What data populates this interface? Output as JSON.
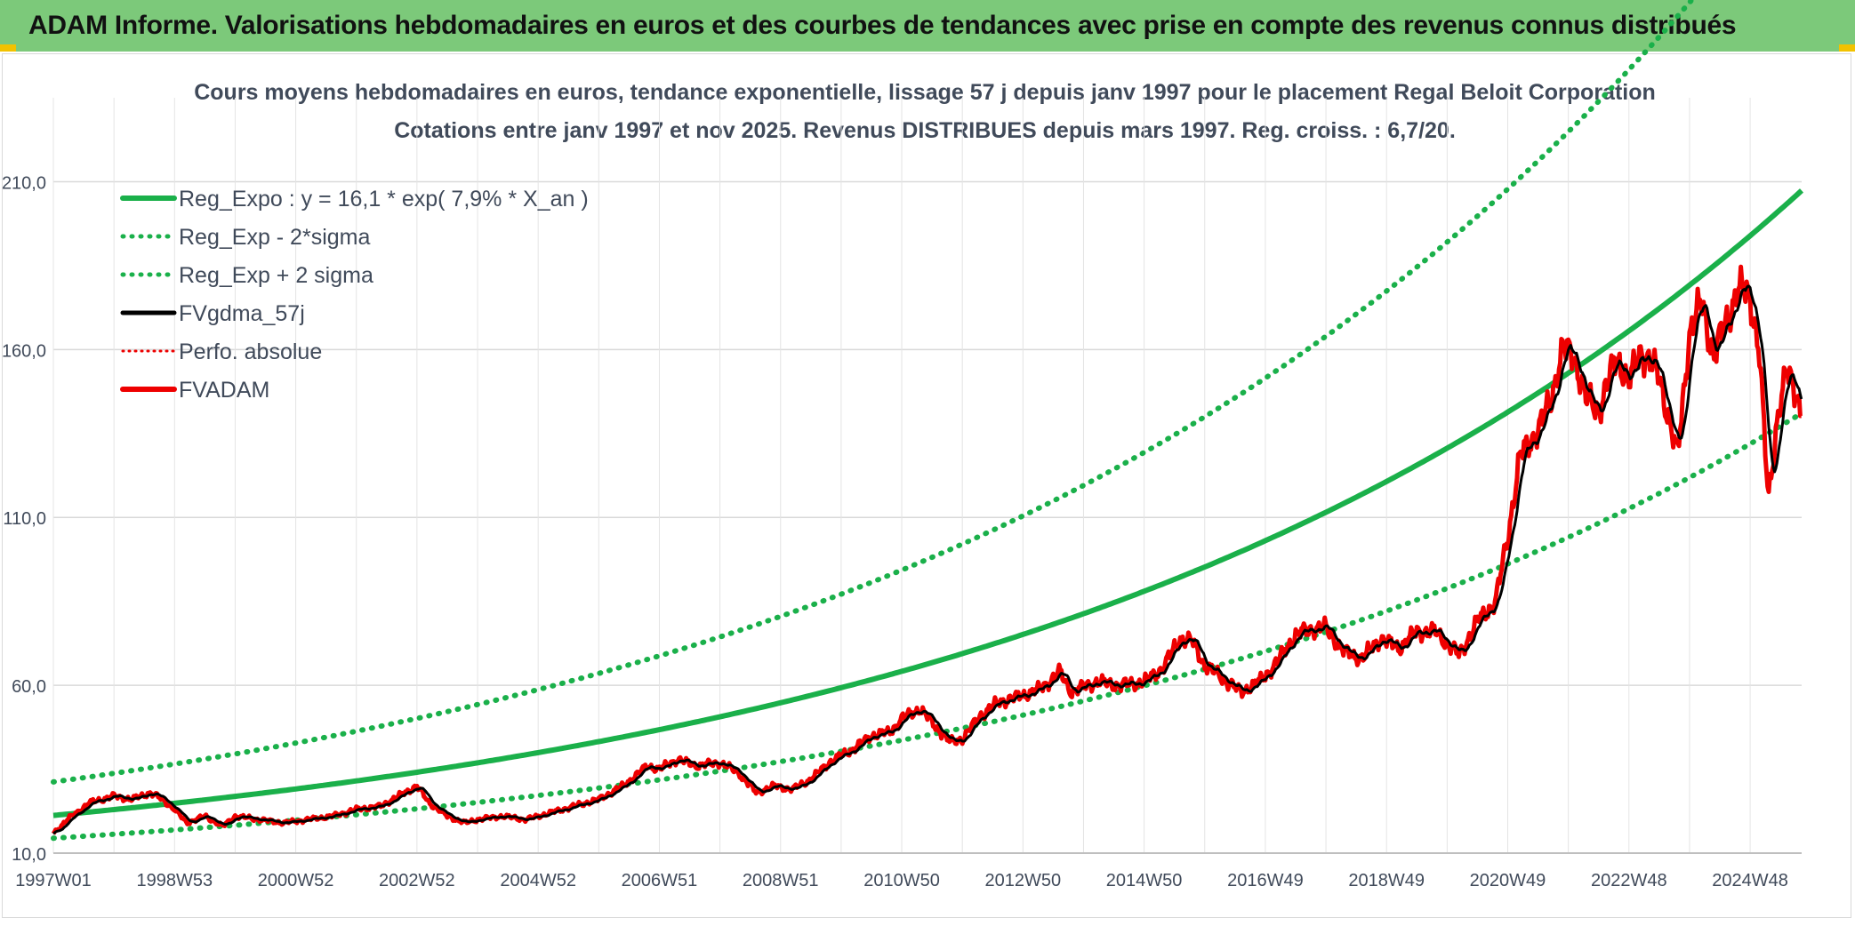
{
  "banner": {
    "title": "ADAM Informe. Valorisations hebdomadaires en euros et des courbes de tendances avec prise en compte des revenus connus distribués"
  },
  "colors": {
    "banner_bg": "#7cc97a",
    "reg_green": "#1ab04a",
    "adam_red": "#ee0000",
    "smooth_black": "#000000",
    "grid": "#d9d9d9"
  },
  "chart_data": {
    "type": "line",
    "title": "Cours moyens hebdomadaires en euros, tendance exponentielle, lissage 57 j depuis janv 1997 pour le placement Regal Beloit Corporation",
    "subtitle": "Cotations entre janv 1997 et nov 2025. Revenus DISTRIBUES depuis mars 1997. Reg. croiss. : 6,7/20.",
    "xlabel": "",
    "ylabel": "",
    "x_range_years": [
      1997.0,
      2025.85
    ],
    "ylim": [
      10,
      235
    ],
    "yticks": [
      10,
      60,
      110,
      160,
      210
    ],
    "ytick_labels": [
      "10,0",
      "60,0",
      "110,0",
      "160,0",
      "210,0"
    ],
    "xticks": [
      {
        "label": "1997W01",
        "year": 1997.0
      },
      {
        "label": "1998W53",
        "year": 1999.0
      },
      {
        "label": "2000W52",
        "year": 2001.0
      },
      {
        "label": "2002W52",
        "year": 2003.0
      },
      {
        "label": "2004W52",
        "year": 2005.0
      },
      {
        "label": "2006W51",
        "year": 2007.0
      },
      {
        "label": "2008W51",
        "year": 2009.0
      },
      {
        "label": "2010W50",
        "year": 2011.0
      },
      {
        "label": "2012W50",
        "year": 2013.0
      },
      {
        "label": "2014W50",
        "year": 2015.0
      },
      {
        "label": "2016W49",
        "year": 2017.0
      },
      {
        "label": "2018W49",
        "year": 2019.0
      },
      {
        "label": "2020W49",
        "year": 2021.0
      },
      {
        "label": "2022W48",
        "year": 2023.0
      },
      {
        "label": "2024W48",
        "year": 2025.0
      }
    ],
    "grid": true,
    "legend_position": "top-left",
    "regression": {
      "a": 16.1,
      "rate": 0.079,
      "band_factor": 1.47
    },
    "series": [
      {
        "name": "Reg_Expo : y = 16,1 * exp( 7,9% *  X_an )",
        "style": "solid-green"
      },
      {
        "name": "Reg_Exp - 2*sigma",
        "style": "dotted-green"
      },
      {
        "name": "Reg_Exp + 2 sigma",
        "style": "dotted-green"
      },
      {
        "name": "FVgdma_57j",
        "style": "solid-black"
      },
      {
        "name": "Perfo. absolue",
        "style": "dotted-red"
      },
      {
        "name": "FVADAM",
        "style": "solid-red"
      }
    ],
    "fvadam_keypoints": [
      [
        1997.0,
        16
      ],
      [
        1997.3,
        21
      ],
      [
        1997.6,
        25
      ],
      [
        1998.0,
        27
      ],
      [
        1998.3,
        26
      ],
      [
        1998.6,
        28
      ],
      [
        1998.8,
        26
      ],
      [
        1999.0,
        23
      ],
      [
        1999.2,
        19
      ],
      [
        1999.5,
        21
      ],
      [
        1999.8,
        18
      ],
      [
        2000.0,
        21
      ],
      [
        2000.4,
        20
      ],
      [
        2000.8,
        19
      ],
      [
        2001.2,
        20
      ],
      [
        2001.6,
        21
      ],
      [
        2002.0,
        23
      ],
      [
        2002.4,
        24
      ],
      [
        2002.8,
        28
      ],
      [
        2003.0,
        30
      ],
      [
        2003.2,
        25
      ],
      [
        2003.5,
        21
      ],
      [
        2003.8,
        19
      ],
      [
        2004.0,
        20
      ],
      [
        2004.4,
        21
      ],
      [
        2004.8,
        20
      ],
      [
        2005.0,
        21
      ],
      [
        2005.4,
        23
      ],
      [
        2005.8,
        25
      ],
      [
        2006.0,
        26
      ],
      [
        2006.4,
        30
      ],
      [
        2006.8,
        36
      ],
      [
        2007.0,
        35
      ],
      [
        2007.3,
        38
      ],
      [
        2007.6,
        36
      ],
      [
        2008.0,
        37
      ],
      [
        2008.3,
        34
      ],
      [
        2008.6,
        28
      ],
      [
        2008.9,
        30
      ],
      [
        2009.2,
        29
      ],
      [
        2009.5,
        32
      ],
      [
        2009.8,
        37
      ],
      [
        2010.2,
        41
      ],
      [
        2010.5,
        45
      ],
      [
        2010.8,
        46
      ],
      [
        2011.0,
        50
      ],
      [
        2011.3,
        53
      ],
      [
        2011.6,
        47
      ],
      [
        2011.8,
        43
      ],
      [
        2012.0,
        44
      ],
      [
        2012.3,
        51
      ],
      [
        2012.6,
        55
      ],
      [
        2013.0,
        57
      ],
      [
        2013.3,
        59
      ],
      [
        2013.6,
        64
      ],
      [
        2013.8,
        58
      ],
      [
        2014.2,
        61
      ],
      [
        2014.6,
        60
      ],
      [
        2015.0,
        61
      ],
      [
        2015.3,
        65
      ],
      [
        2015.6,
        74
      ],
      [
        2015.8,
        73
      ],
      [
        2016.0,
        66
      ],
      [
        2016.3,
        62
      ],
      [
        2016.6,
        58
      ],
      [
        2016.9,
        61
      ],
      [
        2017.2,
        67
      ],
      [
        2017.5,
        75
      ],
      [
        2017.8,
        77
      ],
      [
        2018.0,
        77
      ],
      [
        2018.3,
        70
      ],
      [
        2018.6,
        68
      ],
      [
        2018.9,
        74
      ],
      [
        2019.2,
        71
      ],
      [
        2019.5,
        76
      ],
      [
        2019.8,
        76
      ],
      [
        2020.2,
        69
      ],
      [
        2020.5,
        79
      ],
      [
        2020.8,
        85
      ],
      [
        2021.0,
        104
      ],
      [
        2021.2,
        128
      ],
      [
        2021.5,
        136
      ],
      [
        2021.7,
        144
      ],
      [
        2021.9,
        160
      ],
      [
        2022.1,
        158
      ],
      [
        2022.3,
        145
      ],
      [
        2022.5,
        142
      ],
      [
        2022.8,
        158
      ],
      [
        2023.0,
        150
      ],
      [
        2023.2,
        160
      ],
      [
        2023.5,
        152
      ],
      [
        2023.8,
        128
      ],
      [
        2024.0,
        165
      ],
      [
        2024.2,
        174
      ],
      [
        2024.4,
        158
      ],
      [
        2024.6,
        168
      ],
      [
        2024.8,
        178
      ],
      [
        2025.0,
        176
      ],
      [
        2025.15,
        160
      ],
      [
        2025.3,
        115
      ],
      [
        2025.45,
        140
      ],
      [
        2025.6,
        153
      ],
      [
        2025.75,
        148
      ],
      [
        2025.85,
        142
      ]
    ]
  }
}
